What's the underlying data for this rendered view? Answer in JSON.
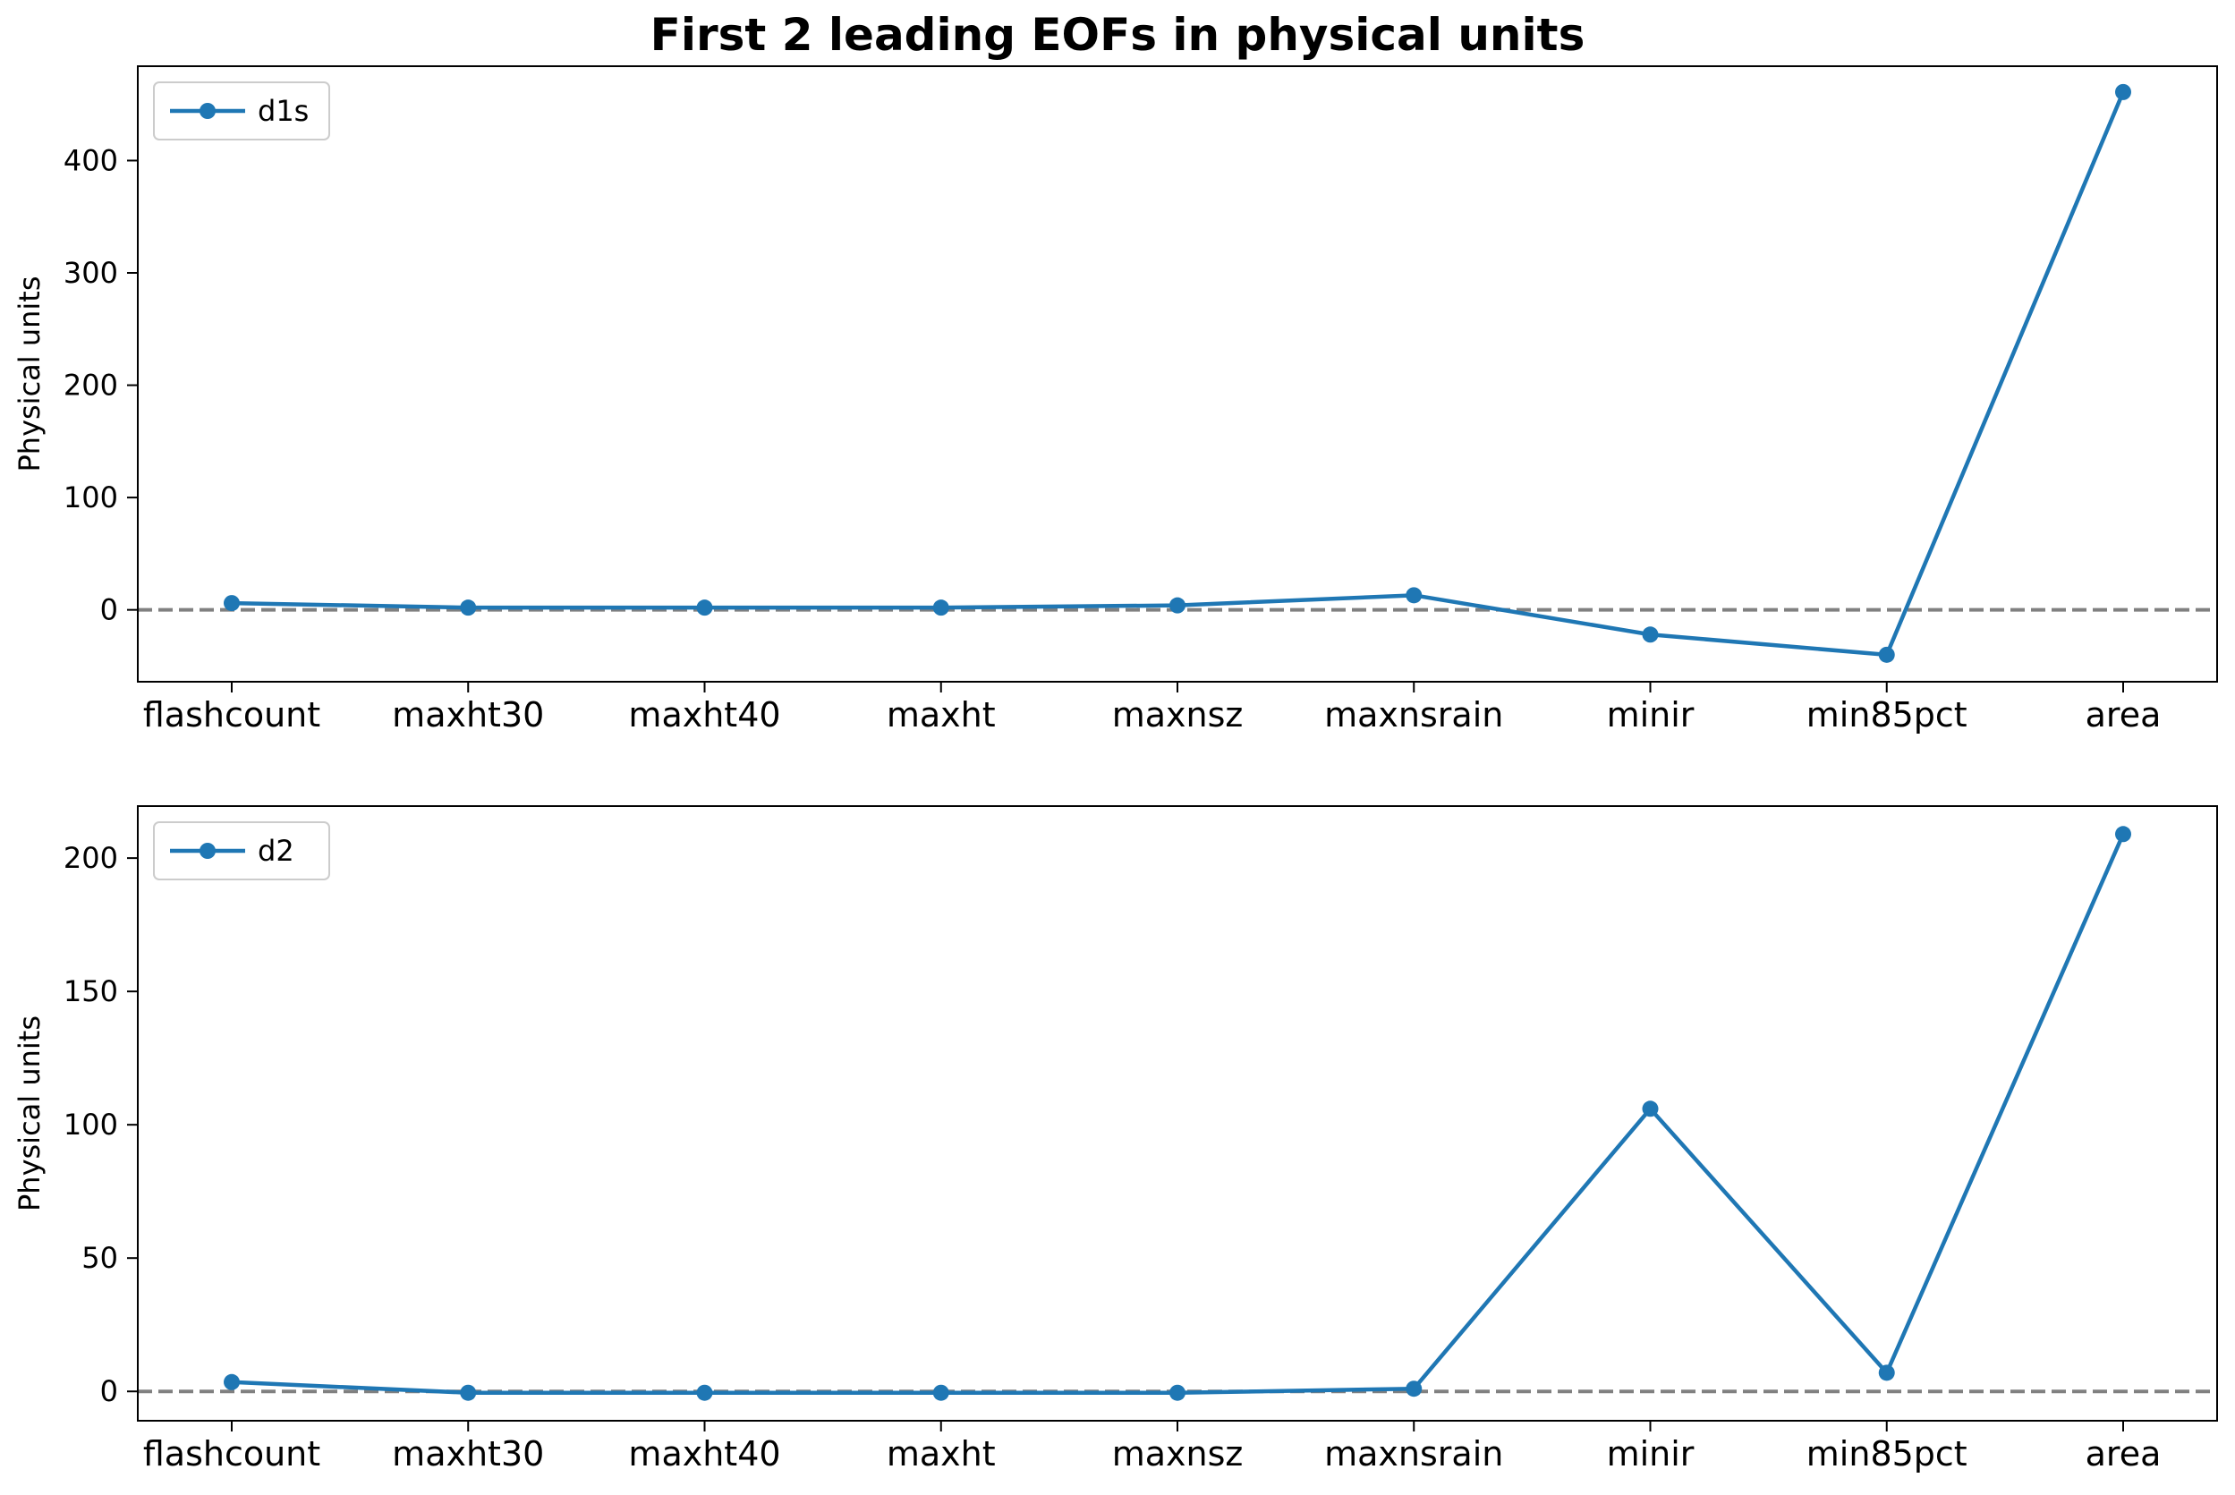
{
  "figure": {
    "title": "First 2 leading EOFs in physical units"
  },
  "chart_data": [
    {
      "type": "line",
      "categories": [
        "flashcount",
        "maxht30",
        "maxht40",
        "maxht",
        "maxnsz",
        "maxnsrain",
        "minir",
        "min85pct",
        "area"
      ],
      "series": [
        {
          "name": "d1s",
          "values": [
            6,
            2,
            2,
            2,
            4,
            13,
            -22,
            -40,
            461
          ],
          "color": "#1f77b4",
          "marker": "circle"
        }
      ],
      "title": "",
      "xlabel": "",
      "ylabel": "Physical units",
      "ylim": [
        -64,
        484
      ],
      "yticks": [
        0,
        100,
        200,
        300,
        400
      ],
      "reference_line": {
        "y": 0,
        "style": "dashed",
        "color": "#808080"
      },
      "legend": "upper-left",
      "grid": false
    },
    {
      "type": "line",
      "categories": [
        "flashcount",
        "maxht30",
        "maxht40",
        "maxht",
        "maxnsz",
        "maxnsrain",
        "minir",
        "min85pct",
        "area"
      ],
      "series": [
        {
          "name": "d2",
          "values": [
            3.5,
            -0.5,
            -0.5,
            -0.5,
            -0.5,
            1,
            106,
            7,
            209
          ],
          "color": "#1f77b4",
          "marker": "circle"
        }
      ],
      "title": "",
      "xlabel": "",
      "ylabel": "Physical units",
      "ylim": [
        -11,
        219.5
      ],
      "yticks": [
        0,
        50,
        100,
        150,
        200
      ],
      "reference_line": {
        "y": 0,
        "style": "dashed",
        "color": "#808080"
      },
      "legend": "upper-left",
      "grid": false
    }
  ]
}
